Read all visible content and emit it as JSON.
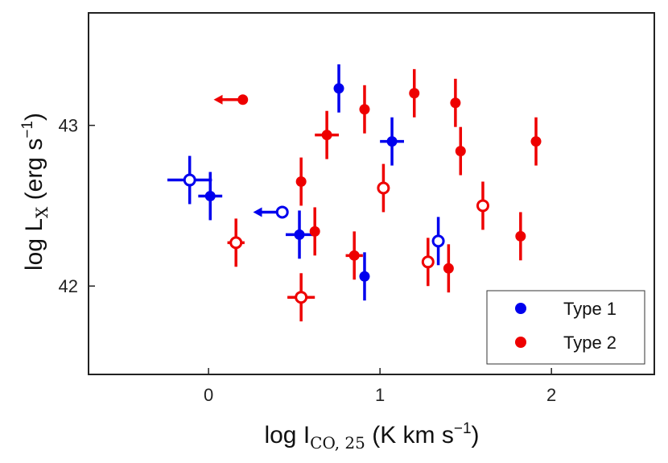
{
  "chart_data": {
    "type": "scatter",
    "xlabel": {
      "main": "log I",
      "sub": "CO, 25",
      "unit_pre": " (K km s",
      "sup": "−1",
      "unit_post": ")"
    },
    "ylabel": {
      "main": "log L",
      "sub": "X",
      "unit_pre": " (erg s",
      "sup": "−1",
      "unit_post": ")"
    },
    "xlim": [
      -0.7,
      2.6
    ],
    "ylim": [
      41.45,
      43.7
    ],
    "xticks": [
      0,
      1,
      2
    ],
    "xtick_labels": [
      "0",
      "1",
      "2"
    ],
    "yticks": [
      42,
      43
    ],
    "ytick_labels": [
      "42",
      "43"
    ],
    "legend_position": "bottom-right",
    "series": [
      {
        "name": "Type 1",
        "color": "#0000ee",
        "points": [
          {
            "x": -0.11,
            "y": 42.66,
            "xerr": 0.13,
            "yerr": 0.15,
            "filled": false
          },
          {
            "x": 0.01,
            "y": 42.56,
            "xerr": 0.07,
            "yerr": 0.15,
            "filled": true
          },
          {
            "x": 0.76,
            "y": 43.23,
            "xerr": 0.0,
            "yerr": 0.15,
            "filled": true
          },
          {
            "x": 1.07,
            "y": 42.9,
            "xerr": 0.07,
            "yerr": 0.15,
            "filled": true
          },
          {
            "x": 0.53,
            "y": 42.32,
            "xerr": 0.08,
            "yerr": 0.15,
            "filled": true
          },
          {
            "x": 0.91,
            "y": 42.06,
            "xerr": 0.0,
            "yerr": 0.15,
            "filled": true
          },
          {
            "x": 1.34,
            "y": 42.28,
            "xerr": 0.0,
            "yerr": 0.15,
            "filled": false
          },
          {
            "x": 0.43,
            "y": 42.46,
            "upper_limit": true,
            "arrow_len": 0.17,
            "filled": false
          }
        ]
      },
      {
        "name": "Type 2",
        "color": "#ee0000",
        "points": [
          {
            "x": 0.2,
            "y": 43.16,
            "upper_limit": true,
            "arrow_len": 0.17,
            "filled": true
          },
          {
            "x": 0.16,
            "y": 42.27,
            "xerr": 0.05,
            "yerr": 0.15,
            "filled": false
          },
          {
            "x": 0.54,
            "y": 42.65,
            "xerr": 0.0,
            "yerr": 0.15,
            "filled": true
          },
          {
            "x": 0.62,
            "y": 42.34,
            "xerr": 0.0,
            "yerr": 0.15,
            "filled": true
          },
          {
            "x": 0.54,
            "y": 41.93,
            "xerr": 0.08,
            "yerr": 0.15,
            "filled": false
          },
          {
            "x": 0.69,
            "y": 42.94,
            "xerr": 0.07,
            "yerr": 0.15,
            "filled": true
          },
          {
            "x": 0.85,
            "y": 42.19,
            "xerr": 0.05,
            "yerr": 0.15,
            "filled": true
          },
          {
            "x": 0.91,
            "y": 43.1,
            "xerr": 0.0,
            "yerr": 0.15,
            "filled": true
          },
          {
            "x": 1.02,
            "y": 42.61,
            "xerr": 0.0,
            "yerr": 0.15,
            "filled": false
          },
          {
            "x": 1.2,
            "y": 43.2,
            "xerr": 0.0,
            "yerr": 0.15,
            "filled": true
          },
          {
            "x": 1.28,
            "y": 42.15,
            "xerr": 0.0,
            "yerr": 0.15,
            "filled": false
          },
          {
            "x": 1.4,
            "y": 42.11,
            "xerr": 0.0,
            "yerr": 0.15,
            "filled": true
          },
          {
            "x": 1.44,
            "y": 43.14,
            "xerr": 0.0,
            "yerr": 0.15,
            "filled": true
          },
          {
            "x": 1.47,
            "y": 42.84,
            "xerr": 0.0,
            "yerr": 0.15,
            "filled": true
          },
          {
            "x": 1.6,
            "y": 42.5,
            "xerr": 0.0,
            "yerr": 0.15,
            "filled": false
          },
          {
            "x": 1.82,
            "y": 42.31,
            "xerr": 0.0,
            "yerr": 0.15,
            "filled": true
          },
          {
            "x": 1.91,
            "y": 42.9,
            "xerr": 0.0,
            "yerr": 0.15,
            "filled": true
          }
        ]
      }
    ]
  }
}
